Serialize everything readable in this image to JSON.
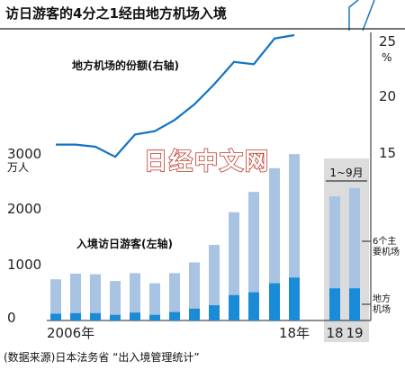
{
  "title": "访日游客的4分之1经由地方机场入境",
  "source": "(数据来源)日本法务省 “出入境管理统计”",
  "watermark": "日经中文网",
  "colors": {
    "bar_total": "#a9c4e2",
    "bar_local": "#1a8bd6",
    "line": "#1173c4",
    "panel": "#dcdcdc",
    "axis": "#222222"
  },
  "chart_data": {
    "type": "bar",
    "categories": [
      "2006年",
      "",
      "",
      "",
      "",
      "",
      "",
      "",
      "",
      "",
      "",
      "",
      "18年",
      "18",
      "19"
    ],
    "left_axis": {
      "ticks": [
        "0",
        "1000",
        "2000",
        "3000"
      ],
      "unit": "万人",
      "ylim": [
        0,
        3200
      ]
    },
    "right_axis": {
      "ticks": [
        "15",
        "20",
        "25"
      ],
      "unit": "%",
      "ylim": [
        13,
        26
      ]
    },
    "series": [
      {
        "name": "入境访日游客(左轴)",
        "values": [
          730,
          830,
          820,
          700,
          840,
          660,
          840,
          1030,
          1340,
          1920,
          2280,
          2700,
          2950,
          2200,
          2350
        ]
      },
      {
        "name": "6个主要机场",
        "values": [
          610,
          700,
          690,
          600,
          700,
          560,
          690,
          820,
          1070,
          1470,
          1780,
          2040,
          2190,
          1630,
          1780
        ]
      },
      {
        "name": "地方机场",
        "values": [
          120,
          130,
          130,
          100,
          140,
          100,
          150,
          210,
          270,
          450,
          500,
          660,
          760,
          570,
          570
        ]
      }
    ],
    "line": {
      "name": "地方机场的份额(右轴)",
      "values": [
        15.6,
        15.6,
        15.4,
        14.5,
        16.5,
        16.8,
        17.8,
        19.2,
        21.0,
        23.0,
        22.8,
        25.1,
        25.4
      ]
    },
    "panel_label": "1~9月"
  }
}
